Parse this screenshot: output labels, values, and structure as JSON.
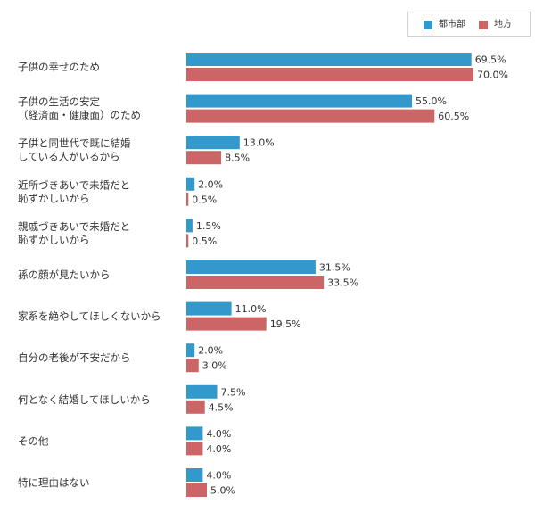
{
  "chart_data": {
    "type": "bar",
    "orientation": "horizontal",
    "categories": [
      [
        "子供の幸せのため"
      ],
      [
        "子供の生活の安定",
        "（経済面・健康面）のため"
      ],
      [
        "子供と同世代で既に結婚",
        "している人がいるから"
      ],
      [
        "近所づきあいで未婚だと",
        "恥ずかしいから"
      ],
      [
        "親戚づきあいで未婚だと",
        "恥ずかしいから"
      ],
      [
        "孫の顔が見たいから"
      ],
      [
        "家系を絶やしてほしくないから"
      ],
      [
        "自分の老後が不安だから"
      ],
      [
        "何となく結婚してほしいから"
      ],
      [
        "その他"
      ],
      [
        "特に理由はない"
      ]
    ],
    "series": [
      {
        "name": "都市部",
        "color": "#3399cc",
        "values": [
          69.5,
          55.0,
          13.0,
          2.0,
          1.5,
          31.5,
          11.0,
          2.0,
          7.5,
          4.0,
          4.0
        ],
        "value_labels": [
          "69.5%",
          "55.0%",
          "13.0%",
          "2.0%",
          "1.5%",
          "31.5%",
          "11.0%",
          "2.0%",
          "7.5%",
          "4.0%",
          "4.0%"
        ]
      },
      {
        "name": "地方",
        "color": "#cc6666",
        "values": [
          70.0,
          60.5,
          8.5,
          0.5,
          0.5,
          33.5,
          19.5,
          3.0,
          4.5,
          4.0,
          5.0
        ],
        "value_labels": [
          "70.0%",
          "60.5%",
          "8.5%",
          "0.5%",
          "0.5%",
          "33.5%",
          "19.5%",
          "3.0%",
          "4.5%",
          "4.0%",
          "5.0%"
        ]
      }
    ],
    "xlim": [
      0,
      100
    ],
    "grid": false,
    "legend_position": "top-right"
  }
}
